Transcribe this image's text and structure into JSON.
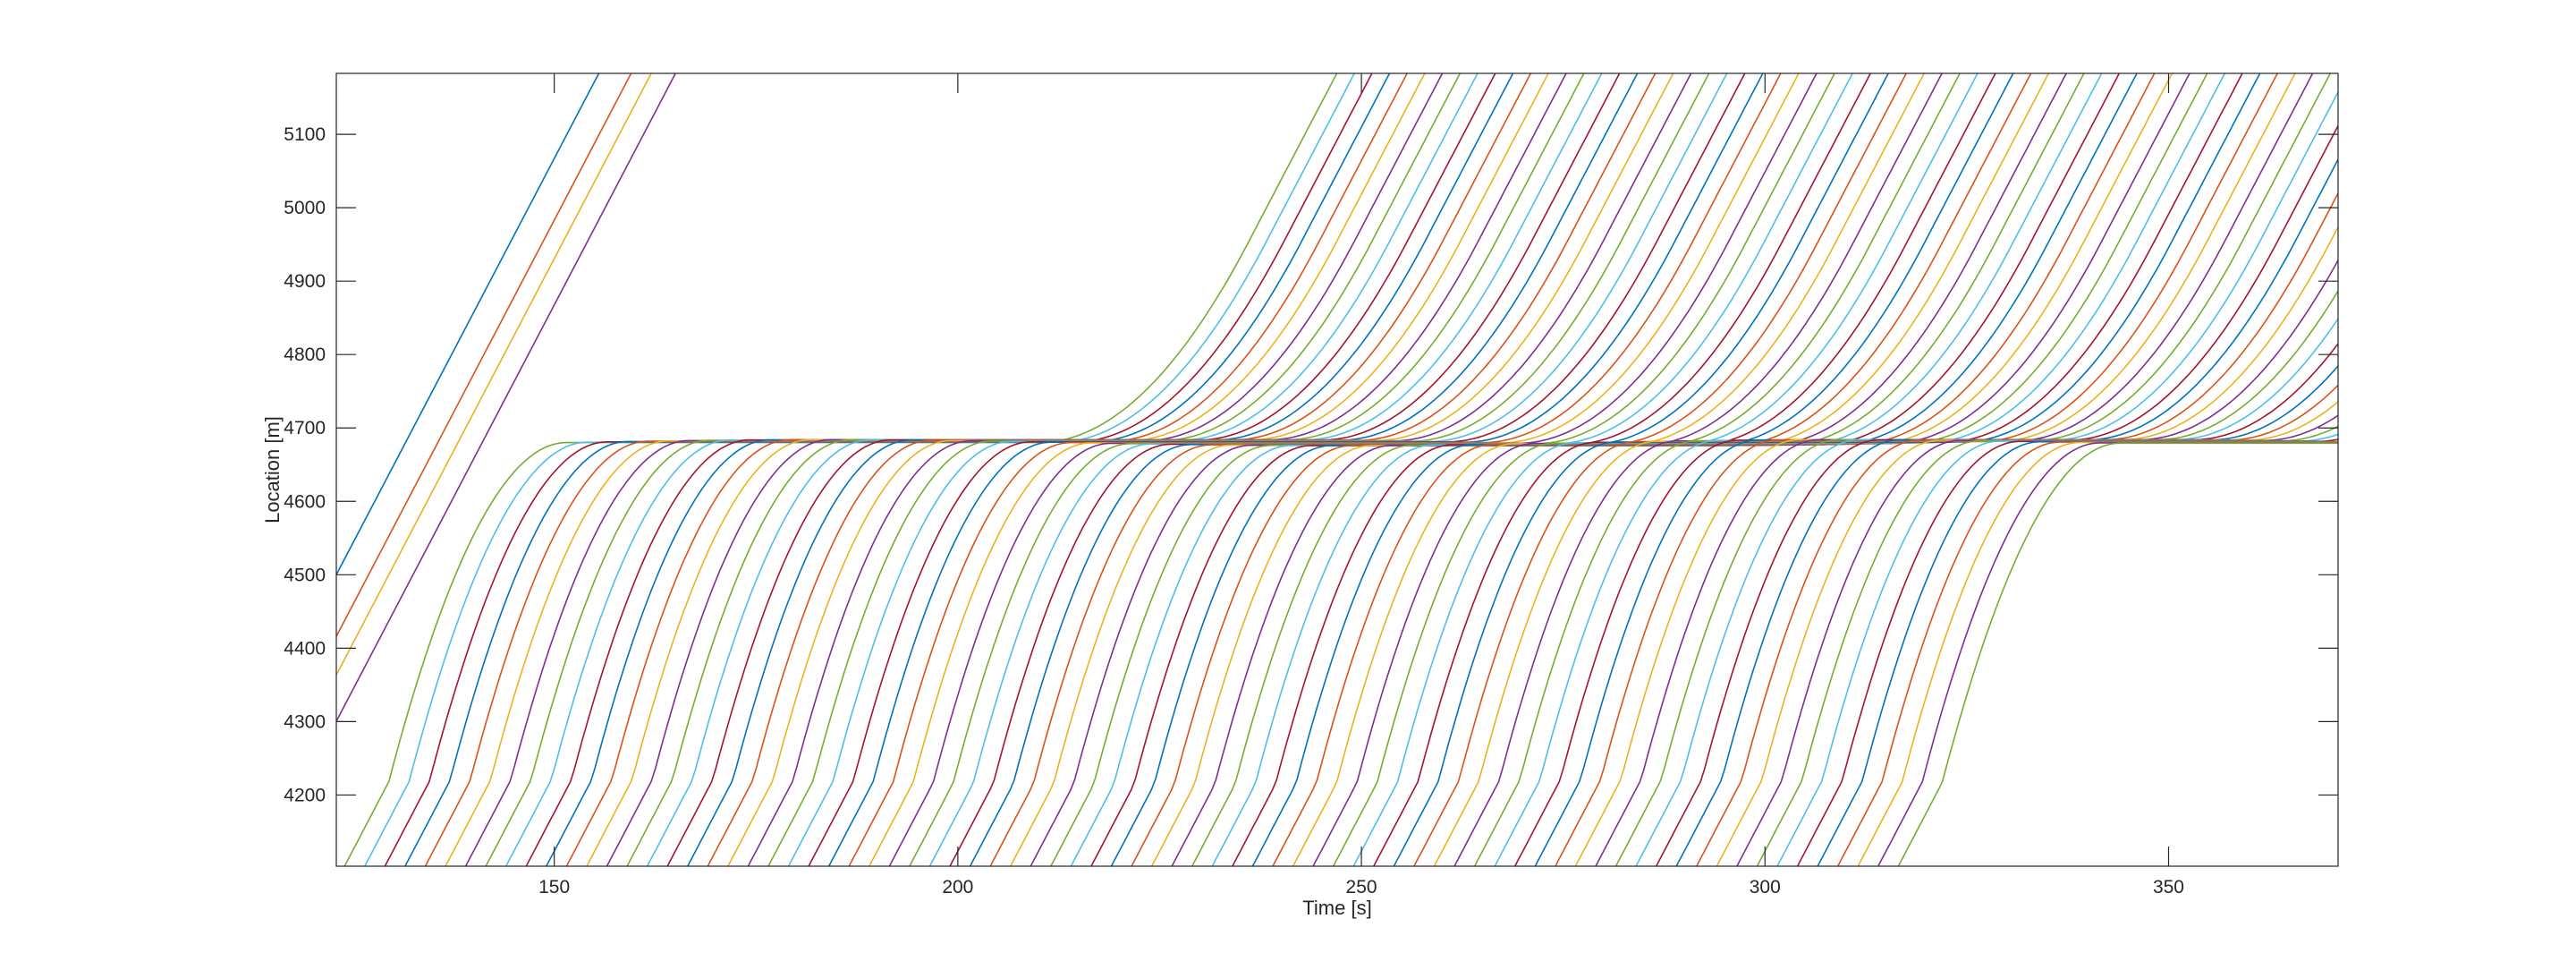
{
  "chart_data": {
    "type": "line",
    "title": "",
    "xlabel": "Time [s]",
    "ylabel": "Location [m]",
    "xlim": [
      123,
      371
    ],
    "ylim": [
      4103,
      5183
    ],
    "xticks": [
      150,
      200,
      250,
      300,
      350
    ],
    "yticks": [
      4200,
      4300,
      4400,
      4500,
      4600,
      4700,
      4800,
      4900,
      5000,
      5100
    ],
    "grid": false,
    "legend": "none",
    "series_colors": [
      "#0072BD",
      "#D95319",
      "#EDB120",
      "#7E2F8E",
      "#77AC30",
      "#4DBEEE",
      "#A2142F"
    ],
    "free_flow_speed_mps": 21,
    "queue": {
      "location_m": 4680,
      "front_speed_mps": -0.25,
      "front_origin_time_s": 128,
      "discharge_start_time_s": 210,
      "discharge_headway_s": 2.2
    },
    "vehicles_passing_top": [
      {
        "t_4500": 123.0
      },
      {
        "t_4500": 127.0
      },
      {
        "t_4500": 129.5
      },
      {
        "t_4500": 132.5
      }
    ],
    "vehicles_through_queue": {
      "first_arrival_time_s": 121.5,
      "arrival_headway_s": 2.5,
      "count": 78
    }
  }
}
